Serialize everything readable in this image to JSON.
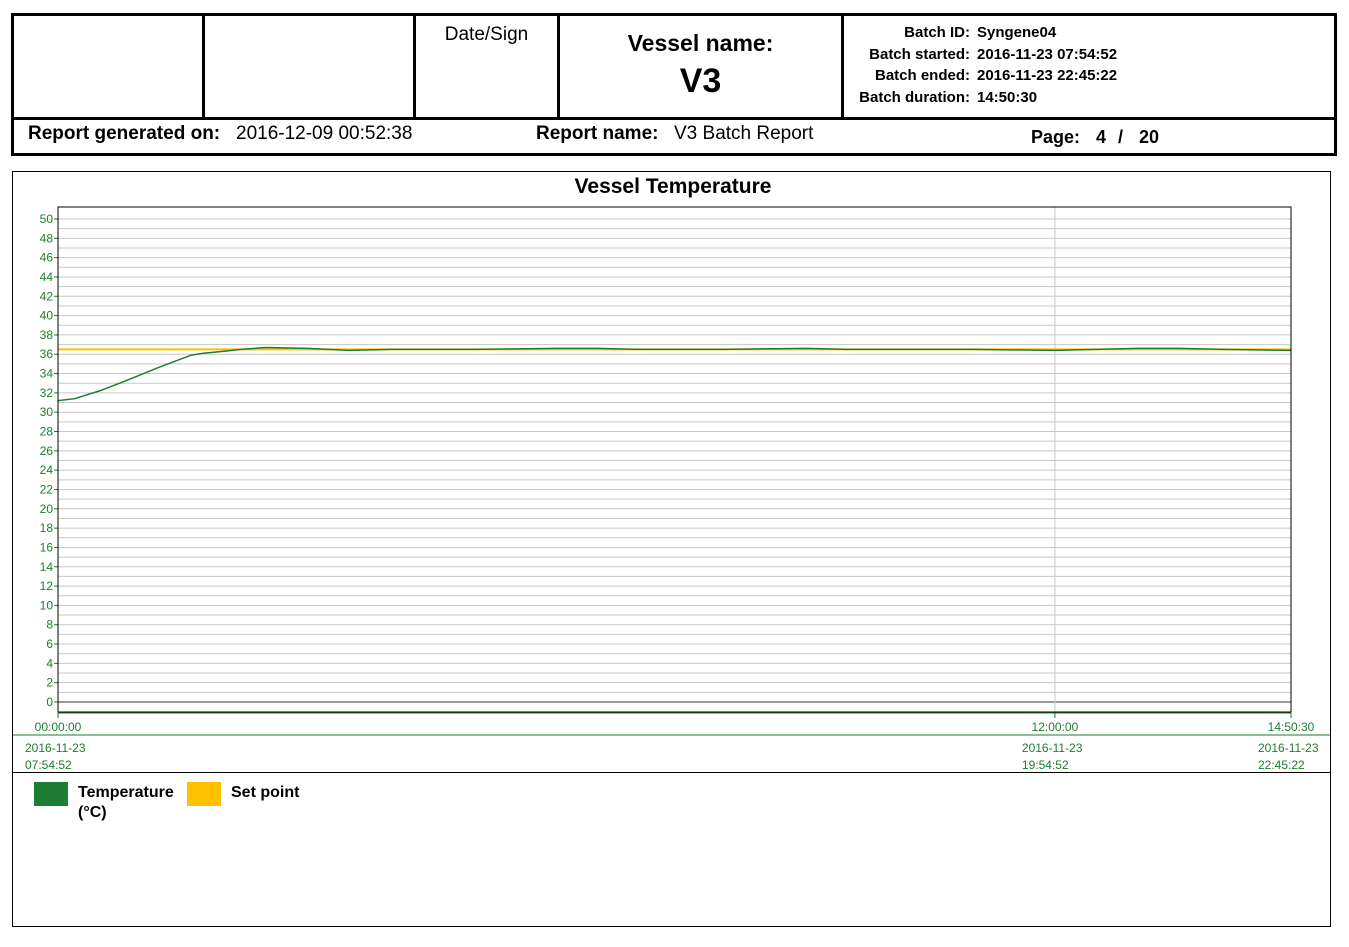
{
  "header": {
    "date_sign": "Date/Sign",
    "vessel_label": "Vessel name:",
    "vessel_name": "V3",
    "batch": [
      {
        "label": "Batch ID:",
        "value": "Syngene04"
      },
      {
        "label": "Batch started:",
        "value": "2016-11-23 07:54:52"
      },
      {
        "label": "Batch ended:",
        "value": "2016-11-23 22:45:22"
      },
      {
        "label": "Batch duration:",
        "value": "14:50:30"
      }
    ],
    "generated_label": "Report generated on:",
    "generated_value": "2016-12-09 00:52:38",
    "report_name_label": "Report name:",
    "report_name_value": "V3 Batch Report",
    "page_label": "Page:",
    "page_current": "4",
    "page_sep": "/",
    "page_total": "20"
  },
  "chart_data": {
    "type": "line",
    "title": "Vessel Temperature",
    "x_unit": "hours elapsed",
    "xlim": [
      0,
      14.8417
    ],
    "ylim": [
      0,
      50
    ],
    "y_ticks": [
      0,
      2,
      4,
      6,
      8,
      10,
      12,
      14,
      16,
      18,
      20,
      22,
      24,
      26,
      28,
      30,
      32,
      34,
      36,
      38,
      40,
      42,
      44,
      46,
      48,
      50
    ],
    "x_ticks": [
      {
        "x": 0,
        "label": "00:00:00",
        "date": "2016-11-23",
        "time": "07:54:52"
      },
      {
        "x": 12,
        "label": "12:00:00",
        "date": "2016-11-23",
        "time": "19:54:52"
      },
      {
        "x": 14.8417,
        "label": "14:50:30",
        "date": "2016-11-23",
        "time": "22:45:22"
      }
    ],
    "grid": true,
    "legend_position": "bottom-left",
    "series": [
      {
        "name": "Temperature",
        "unit": "(°C)",
        "color": "#1e7d32",
        "x": [
          0,
          0.2,
          0.5,
          0.8,
          1.2,
          1.6,
          1.75,
          2.0,
          2.2,
          2.5,
          3.0,
          3.5,
          4.0,
          5.0,
          6.0,
          6.5,
          7.0,
          8.0,
          9.0,
          9.5,
          10.0,
          11.0,
          12.0,
          13.0,
          13.5,
          14.0,
          14.84
        ],
        "y": [
          31.2,
          31.4,
          32.2,
          33.2,
          34.6,
          35.9,
          36.1,
          36.3,
          36.5,
          36.7,
          36.6,
          36.4,
          36.5,
          36.5,
          36.6,
          36.6,
          36.5,
          36.5,
          36.6,
          36.5,
          36.5,
          36.5,
          36.4,
          36.6,
          36.6,
          36.5,
          36.4
        ]
      },
      {
        "name": "Set point",
        "unit": "",
        "color": "#ffc000",
        "x": [
          0,
          14.84
        ],
        "y": [
          36.5,
          36.5
        ]
      }
    ]
  }
}
